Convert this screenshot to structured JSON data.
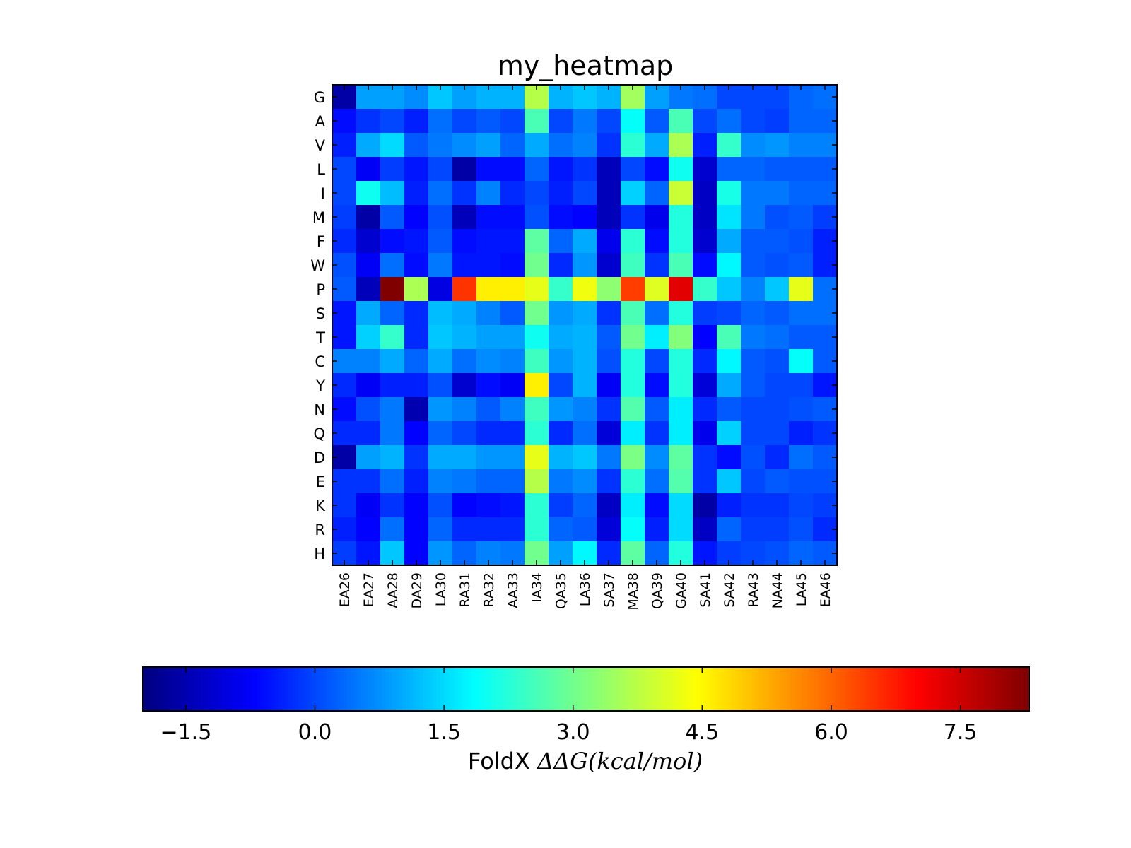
{
  "chart_data": {
    "type": "heatmap",
    "title": "my_heatmap",
    "x_categories": [
      "EA26",
      "EA27",
      "AA28",
      "DA29",
      "LA30",
      "RA31",
      "RA32",
      "AA33",
      "IA34",
      "QA35",
      "LA36",
      "SA37",
      "MA38",
      "QA39",
      "GA40",
      "SA41",
      "SA42",
      "RA43",
      "NA44",
      "LA45",
      "EA46"
    ],
    "y_categories": [
      "G",
      "A",
      "V",
      "L",
      "I",
      "M",
      "F",
      "W",
      "P",
      "S",
      "T",
      "C",
      "Y",
      "N",
      "Q",
      "D",
      "E",
      "K",
      "R",
      "H"
    ],
    "values": [
      [
        -1.6,
        0.9,
        0.9,
        0.7,
        1.3,
        0.9,
        1.1,
        1.1,
        3.7,
        1.1,
        1.3,
        1.1,
        3.5,
        0.9,
        0.5,
        0.4,
        0.0,
        0.0,
        0.0,
        0.3,
        0.4
      ],
      [
        -0.6,
        -0.2,
        0.0,
        -0.4,
        0.4,
        0.0,
        0.2,
        0.0,
        2.6,
        0.0,
        0.5,
        0.0,
        1.9,
        0.2,
        2.6,
        0.0,
        0.4,
        0.0,
        -0.1,
        0.3,
        0.3
      ],
      [
        -0.4,
        1.0,
        1.5,
        0.2,
        0.5,
        0.7,
        0.9,
        0.3,
        1.0,
        0.4,
        0.6,
        -0.2,
        2.3,
        1.0,
        3.6,
        -0.4,
        2.4,
        0.7,
        0.8,
        0.6,
        0.6
      ],
      [
        0.0,
        -0.8,
        -0.1,
        -0.5,
        0.0,
        -1.6,
        -0.6,
        -0.6,
        0.3,
        -0.5,
        -0.2,
        -1.4,
        0.0,
        -0.6,
        2.0,
        -1.2,
        0.3,
        0.3,
        0.2,
        0.2,
        0.2
      ],
      [
        0.0,
        2.0,
        1.2,
        -0.4,
        0.4,
        -0.2,
        0.6,
        -0.3,
        0.0,
        -0.4,
        0.0,
        -1.4,
        1.4,
        0.3,
        3.9,
        -1.3,
        2.1,
        0.5,
        0.5,
        0.3,
        0.3
      ],
      [
        -0.1,
        -1.6,
        0.2,
        -0.7,
        0.1,
        -1.4,
        -0.6,
        -0.6,
        0.1,
        -0.6,
        -0.7,
        -1.4,
        -0.2,
        -0.9,
        2.2,
        -1.3,
        1.6,
        0.5,
        0.1,
        0.2,
        -0.1
      ],
      [
        -0.3,
        -1.2,
        -0.6,
        -0.5,
        0.2,
        -0.6,
        -0.5,
        -0.5,
        2.8,
        0.3,
        1.0,
        -0.9,
        2.3,
        -0.6,
        2.2,
        -1.2,
        1.0,
        0.2,
        0.2,
        0.1,
        -0.4
      ],
      [
        0.1,
        -0.8,
        0.4,
        -0.6,
        0.5,
        -0.5,
        -0.5,
        -0.6,
        3.0,
        -0.3,
        0.8,
        -1.2,
        2.5,
        -0.2,
        2.6,
        -0.6,
        1.8,
        0.2,
        0.1,
        0.2,
        -0.4
      ],
      [
        0.2,
        -1.4,
        8.3,
        3.6,
        -1.0,
        6.5,
        4.6,
        4.6,
        4.2,
        2.4,
        4.3,
        3.3,
        6.4,
        4.1,
        7.3,
        2.4,
        1.3,
        0.6,
        1.3,
        4.2,
        0.4
      ],
      [
        -0.5,
        1.0,
        0.3,
        -0.3,
        1.2,
        1.0,
        0.6,
        0.2,
        3.0,
        0.8,
        1.0,
        -0.2,
        2.6,
        0.4,
        2.2,
        -0.1,
        0.0,
        0.3,
        0.2,
        0.4,
        0.4
      ],
      [
        -0.5,
        1.4,
        2.4,
        -0.3,
        1.3,
        1.1,
        0.9,
        0.9,
        2.0,
        1.0,
        1.1,
        0.2,
        3.0,
        1.7,
        3.2,
        -0.7,
        2.6,
        0.5,
        0.4,
        0.2,
        0.2
      ],
      [
        0.6,
        0.6,
        1.0,
        0.3,
        1.0,
        0.4,
        0.7,
        0.6,
        2.5,
        0.8,
        1.1,
        0.1,
        2.2,
        0.0,
        2.2,
        -0.3,
        1.8,
        0.2,
        0.1,
        1.9,
        0.2
      ],
      [
        -0.3,
        -0.8,
        -0.4,
        -0.4,
        0.1,
        -1.2,
        -0.6,
        -0.8,
        4.6,
        0.0,
        1.1,
        -0.8,
        2.2,
        -0.6,
        2.2,
        -1.1,
        1.0,
        0.2,
        0.0,
        0.0,
        -0.5
      ],
      [
        -0.6,
        0.1,
        0.5,
        -1.5,
        0.8,
        0.6,
        0.2,
        0.6,
        2.5,
        0.8,
        0.6,
        -0.2,
        2.7,
        0.2,
        1.7,
        -0.3,
        0.2,
        0.0,
        0.0,
        0.1,
        0.2
      ],
      [
        -0.3,
        -0.3,
        0.5,
        -0.7,
        0.3,
        0.0,
        -0.3,
        -0.3,
        2.3,
        -0.3,
        0.4,
        -1.1,
        1.7,
        -0.2,
        1.7,
        -0.9,
        1.4,
        0.0,
        0.0,
        -0.4,
        -0.2
      ],
      [
        -1.6,
        0.9,
        1.1,
        -0.2,
        1.0,
        1.0,
        0.8,
        0.8,
        4.2,
        1.1,
        1.3,
        0.5,
        3.1,
        0.7,
        2.8,
        -0.2,
        -0.6,
        0.1,
        -0.3,
        0.4,
        0.2
      ],
      [
        -0.2,
        -0.2,
        0.4,
        -0.4,
        0.6,
        0.5,
        0.3,
        0.3,
        3.7,
        0.5,
        0.7,
        -0.2,
        2.3,
        0.4,
        2.7,
        -0.2,
        1.3,
        0.0,
        0.2,
        0.1,
        0.1
      ],
      [
        -0.2,
        -0.8,
        -0.2,
        -0.7,
        0.1,
        -0.7,
        -0.6,
        -0.5,
        2.3,
        -0.1,
        0.3,
        -1.3,
        1.7,
        -0.6,
        1.5,
        -1.6,
        -0.4,
        -0.2,
        -0.2,
        0.0,
        -0.1
      ],
      [
        -0.4,
        -0.7,
        0.4,
        -0.7,
        0.3,
        -0.3,
        -0.3,
        -0.3,
        2.3,
        0.3,
        0.2,
        -1.1,
        1.9,
        -0.4,
        1.5,
        -1.3,
        0.3,
        -0.1,
        -0.1,
        0.1,
        -0.3
      ],
      [
        -0.1,
        -0.5,
        1.3,
        -0.7,
        0.8,
        0.3,
        0.6,
        0.5,
        3.0,
        0.9,
        1.8,
        -0.3,
        2.8,
        0.3,
        2.2,
        -0.5,
        -0.1,
        0.0,
        0.1,
        0.3,
        0.2
      ]
    ],
    "colormap": "jet",
    "vmin": -2.0,
    "vmax": 8.3,
    "colorbar": {
      "orientation": "horizontal",
      "ticks": [
        -1.5,
        0.0,
        1.5,
        3.0,
        4.5,
        6.0,
        7.5
      ],
      "tick_labels": [
        "−1.5",
        "0.0",
        "1.5",
        "3.0",
        "4.5",
        "6.0",
        "7.5"
      ],
      "label_prefix": "FoldX ",
      "label_math": "ΔΔG(kcal/mol)"
    }
  }
}
